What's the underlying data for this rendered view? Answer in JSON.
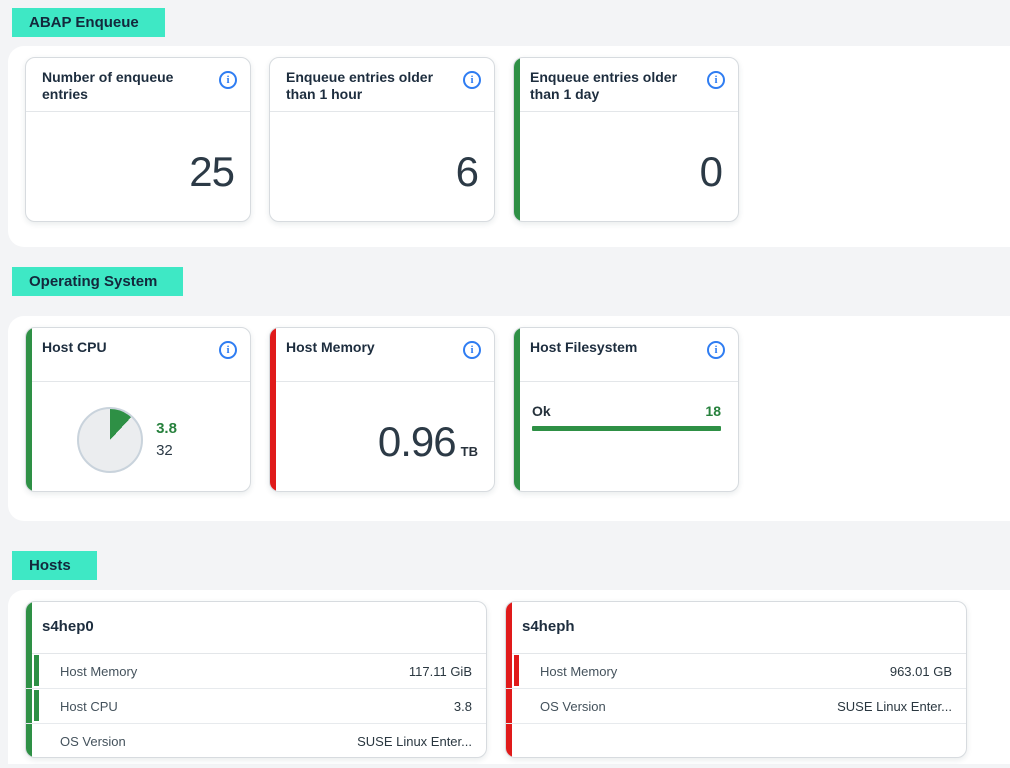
{
  "colors": {
    "highlight_teal": "#3ee8c5",
    "positive_green": "#2e9045",
    "critical_red": "#e01a1a",
    "info_blue": "#2f7df2"
  },
  "icons": {
    "info": "info-icon"
  },
  "sections": [
    {
      "title": "ABAP Enqueue",
      "cards": [
        {
          "title": "Number of enqueue entries",
          "status": "none",
          "value": "25"
        },
        {
          "title": "Enqueue entries older than 1 hour",
          "status": "none",
          "value": "6"
        },
        {
          "title": "Enqueue entries older than 1 day",
          "status": "good",
          "value": "0"
        }
      ]
    },
    {
      "title": "Operating System",
      "cards": [
        {
          "title": "Host CPU",
          "status": "good",
          "chart": {
            "type": "pie",
            "value": 3.8,
            "total": 32,
            "value_label": "3.8",
            "total_label": "32"
          }
        },
        {
          "title": "Host Memory",
          "status": "critical",
          "value": "0.96",
          "unit": "TB"
        },
        {
          "title": "Host Filesystem",
          "status": "good",
          "chart": {
            "type": "bar",
            "label": "Ok",
            "count": "18"
          }
        }
      ]
    },
    {
      "title": "Hosts",
      "cards": [
        {
          "title": "s4hep0",
          "status": "good",
          "rows": [
            {
              "label": "Host Memory",
              "value": "117.11 GiB",
              "status": "good"
            },
            {
              "label": "Host CPU",
              "value": "3.8",
              "status": "good"
            },
            {
              "label": "OS Version",
              "value": "SUSE Linux Enter...",
              "status": "none"
            }
          ]
        },
        {
          "title": "s4heph",
          "status": "critical",
          "rows": [
            {
              "label": "Host Memory",
              "value": "963.01 GB",
              "status": "critical"
            },
            {
              "label": "OS Version",
              "value": "SUSE Linux Enter...",
              "status": "none"
            }
          ]
        }
      ]
    }
  ]
}
